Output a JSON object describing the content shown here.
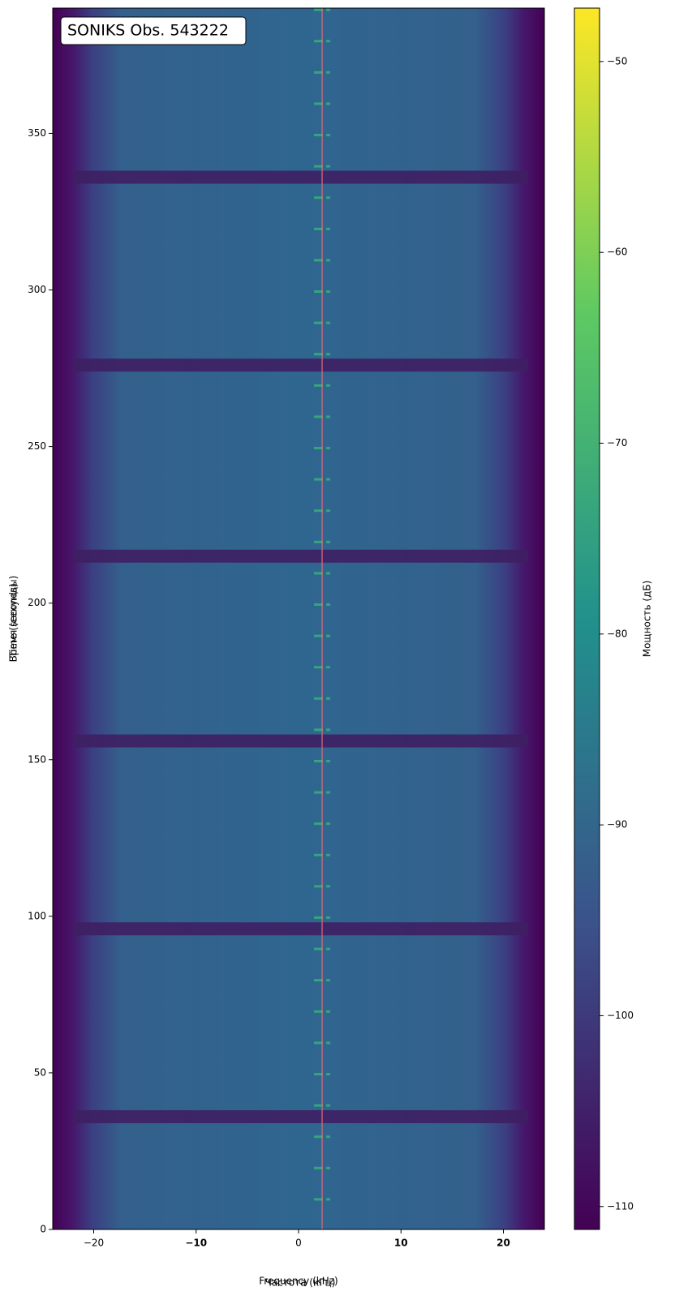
{
  "chart_data": {
    "type": "heatmap",
    "title": "SONIKS Obs. 543222",
    "xlabel": [
      "Frequency (kHz)",
      "Частота (кГц)"
    ],
    "ylabel": [
      "Время (секунды)",
      "Time (seconds)"
    ],
    "xlim": [
      -24,
      24
    ],
    "ylim": [
      0,
      390
    ],
    "xticks": [
      {
        "value": -20,
        "label": "−20"
      },
      {
        "value": -10,
        "label": "−10"
      },
      0,
      10,
      20
    ],
    "yticks": [
      0,
      50,
      100,
      150,
      200,
      250,
      300,
      350
    ],
    "tick_color": "#cc0000",
    "marker_line": {
      "x": 2.3,
      "color": "#e06a78"
    },
    "dropouts": [
      36,
      96,
      156,
      215,
      276,
      336
    ],
    "colorbar": {
      "label": "Мощность (дБ)",
      "colormap": "viridis",
      "lim": [
        -111.2,
        -47.2
      ],
      "ticks": [
        {
          "value": -50,
          "label": "−50"
        },
        {
          "value": -60,
          "label": "−60"
        },
        {
          "value": -70,
          "label": "−70"
        },
        {
          "value": -80,
          "label": "−80"
        },
        {
          "value": -90,
          "label": "−90"
        },
        {
          "value": -100,
          "label": "−100"
        },
        {
          "value": -110,
          "label": "−110"
        }
      ]
    }
  }
}
